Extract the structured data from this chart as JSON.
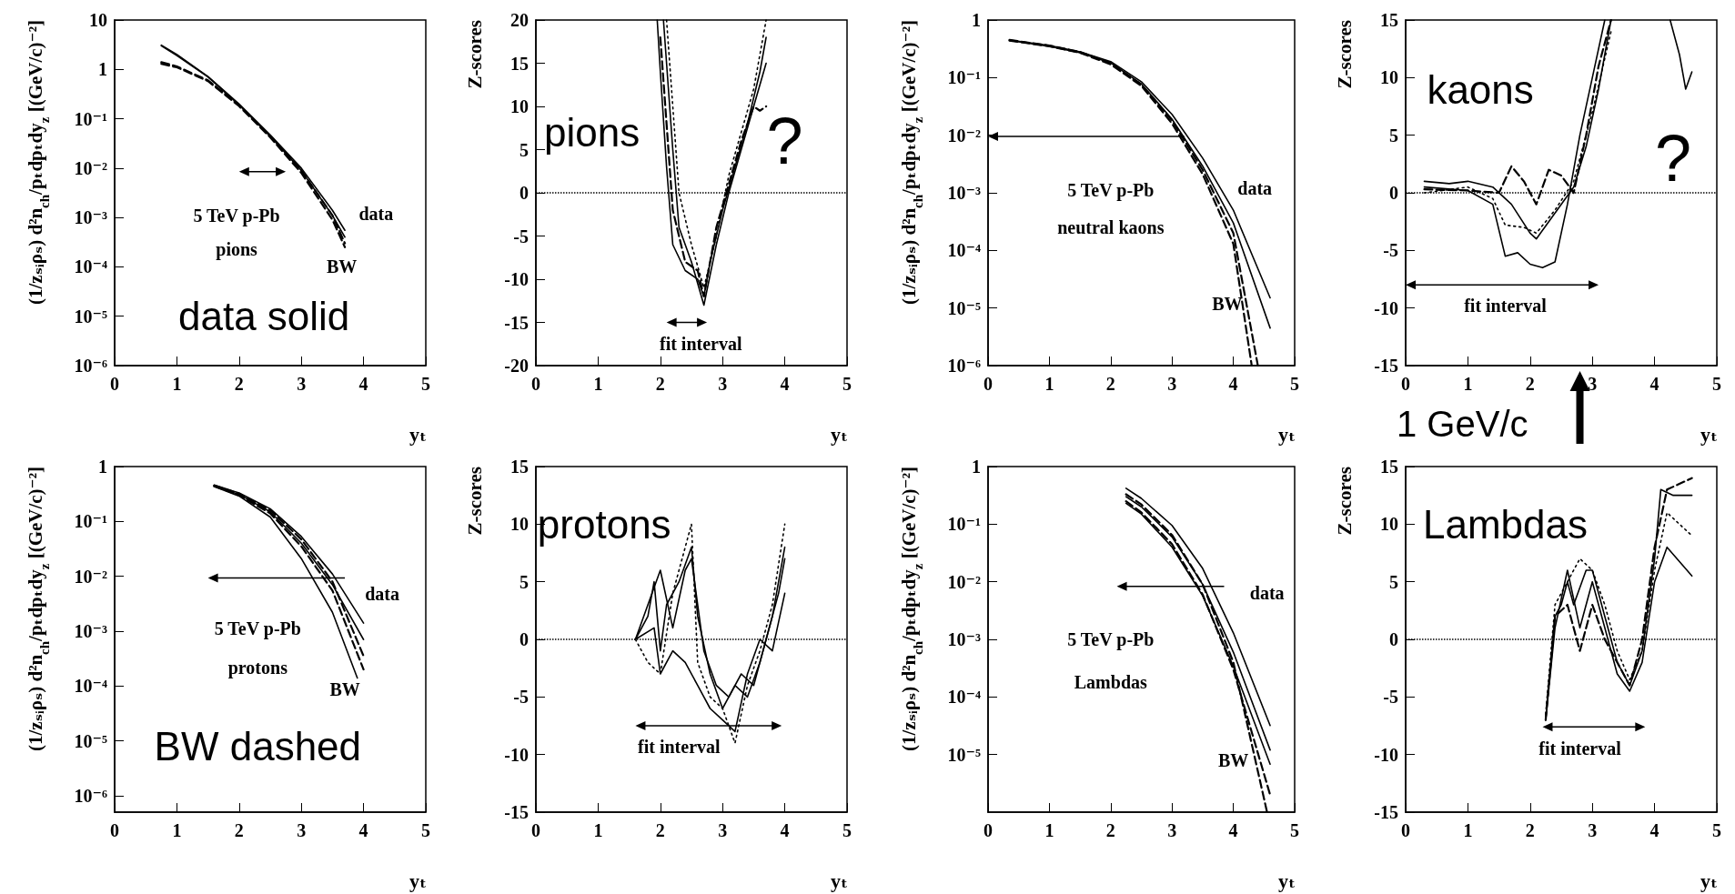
{
  "chart_data": [
    {
      "type": "line",
      "xlabel": "yₜ",
      "ylabel": "(1/zₛᵢρₛ) d²n$_{ch}$/pₜdpₜdy$_{z}$  [(GeV/c)⁻²]",
      "log": "y",
      "marker": "none",
      "xlim": [
        0,
        5
      ],
      "xticks": [
        0,
        1,
        2,
        3,
        4,
        5
      ],
      "ylim": [
        1e-06,
        10
      ],
      "yticks": [
        10,
        1,
        {
          "value": 0.1,
          "label": "10⁻¹"
        },
        {
          "value": 0.01,
          "label": "10⁻²"
        },
        {
          "value": 0.001,
          "label": "10⁻³"
        },
        {
          "value": 0.0001,
          "label": "10⁻⁴"
        },
        {
          "value": 1e-05,
          "label": "10⁻⁵"
        },
        {
          "value": 1e-06,
          "label": "10⁻⁶"
        }
      ],
      "annotations": [
        "data solid",
        "5 TeV p-Pb",
        "pions",
        "data",
        "BW"
      ],
      "series": [
        {
          "color": "#000000",
          "line_style": "solid",
          "x": [
            0.75,
            1,
            1.5,
            2,
            2.5,
            3,
            3.5,
            3.7
          ],
          "values": [
            3.1,
            2.0,
            0.72,
            0.2,
            0.047,
            0.01,
            0.0014,
            0.00055
          ]
        },
        {
          "color": "#000000",
          "line_style": "solid",
          "x": [
            0.75,
            1,
            1.5,
            2,
            2.5,
            3,
            3.5,
            3.7
          ],
          "values": [
            3.0,
            1.9,
            0.7,
            0.19,
            0.044,
            0.009,
            0.0011,
            0.0004
          ]
        },
        {
          "color": "#000000",
          "line_style": "dashed",
          "x": [
            0.75,
            1,
            1.5,
            2,
            2.5,
            3,
            3.5,
            3.7
          ],
          "values": [
            1.4,
            1.15,
            0.6,
            0.19,
            0.045,
            0.009,
            0.0011,
            0.0003
          ]
        },
        {
          "color": "#000000",
          "line_style": "dashed",
          "x": [
            0.75,
            1,
            1.5,
            2,
            2.5,
            3,
            3.5,
            3.7
          ],
          "values": [
            1.3,
            1.1,
            0.58,
            0.18,
            0.042,
            0.008,
            0.0009,
            0.00025
          ]
        }
      ]
    },
    {
      "type": "line",
      "xlabel": "yₜ",
      "ylabel": "Z-scores",
      "marker": "none",
      "xlim": [
        0,
        5
      ],
      "xticks": [
        0,
        1,
        2,
        3,
        4,
        5
      ],
      "ylim": [
        -20,
        20
      ],
      "yticks": [
        -20,
        -15,
        -10,
        -5,
        0,
        5,
        10,
        15,
        20
      ],
      "ref_lines": [
        {
          "axis": "y",
          "value": 0,
          "line_style": "dotted"
        }
      ],
      "annotations": [
        "pions",
        "?",
        "fit interval"
      ],
      "series": [
        {
          "color": "#000000",
          "line_style": "solid",
          "x": [
            1.95,
            2.0,
            2.1,
            2.2,
            2.4,
            2.6,
            2.7,
            2.8,
            3.0,
            3.2,
            3.4,
            3.6,
            3.7
          ],
          "values": [
            20,
            14,
            3,
            -6,
            -9,
            -10,
            -12,
            -8,
            -2,
            3,
            8,
            14,
            18
          ]
        },
        {
          "color": "#000000",
          "line_style": "solid",
          "x": [
            2.05,
            2.2,
            2.3,
            2.5,
            2.7,
            2.9,
            3.1,
            3.3,
            3.5,
            3.7
          ],
          "values": [
            20,
            5,
            -4,
            -8,
            -13,
            -6,
            0,
            5,
            10,
            15
          ]
        },
        {
          "color": "#000000",
          "line_style": "dotted",
          "x": [
            2.1,
            2.3,
            2.5,
            2.7,
            2.9,
            3.1,
            3.3,
            3.5,
            3.7
          ],
          "values": [
            20,
            0,
            -6,
            -11,
            -5,
            2,
            7,
            12,
            20
          ]
        },
        {
          "color": "#000000",
          "line_style": "dashed",
          "x": [
            2.0,
            2.2,
            2.4,
            2.6,
            2.7,
            2.9,
            3.1,
            3.3,
            3.5,
            3.6,
            3.7
          ],
          "values": [
            18,
            -2,
            -8,
            -9,
            -12,
            -4,
            1,
            6,
            10,
            9.5,
            10
          ]
        }
      ]
    },
    {
      "type": "line",
      "xlabel": "yₜ",
      "ylabel": "(1/zₛᵢρₛ) d²n$_{ch}$/pₜdpₜdy$_{z}$  [(GeV/c)⁻²]",
      "log": "y",
      "marker": "none",
      "xlim": [
        0,
        5
      ],
      "xticks": [
        0,
        1,
        2,
        3,
        4,
        5
      ],
      "ylim": [
        1e-06,
        1
      ],
      "yticks": [
        1,
        {
          "value": 0.1,
          "label": "10⁻¹"
        },
        {
          "value": 0.01,
          "label": "10⁻²"
        },
        {
          "value": 0.001,
          "label": "10⁻³"
        },
        {
          "value": 0.0001,
          "label": "10⁻⁴"
        },
        {
          "value": 1e-05,
          "label": "10⁻⁵"
        },
        {
          "value": 1e-06,
          "label": "10⁻⁶"
        }
      ],
      "annotations": [
        "5 TeV p-Pb",
        "neutral kaons",
        "data",
        "BW"
      ],
      "series": [
        {
          "color": "#000000",
          "line_style": "solid",
          "x": [
            0.35,
            1,
            1.5,
            2,
            2.5,
            3,
            3.5,
            4,
            4.6
          ],
          "values": [
            0.45,
            0.36,
            0.28,
            0.19,
            0.085,
            0.023,
            0.004,
            0.0005,
            1.5e-05
          ]
        },
        {
          "color": "#000000",
          "line_style": "solid",
          "x": [
            0.35,
            1,
            1.5,
            2,
            2.5,
            3,
            3.5,
            4,
            4.6
          ],
          "values": [
            0.44,
            0.35,
            0.27,
            0.18,
            0.078,
            0.019,
            0.0029,
            0.0003,
            4.5e-06
          ]
        },
        {
          "color": "#000000",
          "line_style": "dashed",
          "x": [
            0.35,
            1,
            1.5,
            2,
            2.5,
            3,
            3.5,
            4,
            4.3
          ],
          "values": [
            0.44,
            0.35,
            0.27,
            0.17,
            0.072,
            0.016,
            0.0021,
            0.00013,
            1e-06
          ]
        },
        {
          "color": "#000000",
          "line_style": "dashed",
          "x": [
            0.35,
            1,
            1.5,
            2,
            2.5,
            3,
            3.5,
            4,
            4.4
          ],
          "values": [
            0.45,
            0.36,
            0.28,
            0.18,
            0.075,
            0.018,
            0.0025,
            0.0002,
            1e-06
          ]
        }
      ]
    },
    {
      "type": "line",
      "xlabel": "yₜ",
      "ylabel": "Z-scores",
      "marker": "none",
      "xlim": [
        0,
        5
      ],
      "xticks": [
        0,
        1,
        2,
        3,
        4,
        5
      ],
      "ylim": [
        -15,
        15
      ],
      "yticks": [
        -15,
        -10,
        -5,
        0,
        5,
        10,
        15
      ],
      "ref_lines": [
        {
          "axis": "y",
          "value": 0,
          "line_style": "dotted"
        }
      ],
      "annotations": [
        "kaons",
        "?",
        "fit interval",
        "1 GeV/c"
      ],
      "series": [
        {
          "color": "#000000",
          "line_style": "solid",
          "x": [
            0.3,
            0.7,
            1,
            1.4,
            1.7,
            2.0,
            2.1,
            2.3,
            2.5,
            2.7,
            2.9,
            3.1,
            3.3
          ],
          "values": [
            1,
            0.8,
            1,
            0.5,
            -1,
            -3.5,
            -4,
            -2.5,
            -1,
            0.5,
            4,
            9,
            15
          ]
        },
        {
          "color": "#000000",
          "line_style": "solid",
          "x": [
            0.3,
            1,
            1.4,
            1.6,
            1.8,
            2.0,
            2.2,
            2.4,
            2.6,
            2.8,
            3.0,
            3.2
          ],
          "values": [
            0.5,
            0.2,
            -1,
            -5.5,
            -5.2,
            -6.2,
            -6.5,
            -6,
            -1,
            5,
            10,
            15
          ]
        },
        {
          "color": "#000000",
          "line_style": "dashed",
          "x": [
            0.3,
            1.0,
            1.5,
            1.7,
            1.9,
            2.1,
            2.3,
            2.5,
            2.7,
            2.9,
            3.1,
            3.3
          ],
          "values": [
            0.3,
            0.2,
            0,
            2.3,
            1,
            -1,
            2,
            1.5,
            0,
            5,
            11,
            15
          ]
        },
        {
          "color": "#000000",
          "line_style": "dotted",
          "x": [
            0.3,
            1.0,
            1.4,
            1.6,
            1.9,
            2.1,
            2.4,
            2.7,
            3.0,
            3.3
          ],
          "values": [
            0,
            0.5,
            -0.5,
            -2.8,
            -3,
            -3.5,
            -1.5,
            1,
            7,
            14
          ]
        },
        {
          "color": "#000000",
          "line_style": "solid",
          "x": [
            4.25,
            4.4,
            4.5,
            4.6
          ],
          "values": [
            15,
            12,
            9,
            10.5
          ]
        }
      ]
    },
    {
      "type": "line",
      "xlabel": "yₜ",
      "ylabel": "(1/zₛᵢρₛ) d²n$_{ch}$/pₜdpₜdy$_{z}$  [(GeV/c)⁻²]",
      "log": "y",
      "marker": "none",
      "xlim": [
        0,
        5
      ],
      "xticks": [
        0,
        1,
        2,
        3,
        4,
        5
      ],
      "ylim": [
        5e-07,
        1
      ],
      "yticks": [
        1,
        {
          "value": 0.1,
          "label": "10⁻¹"
        },
        {
          "value": 0.01,
          "label": "10⁻²"
        },
        {
          "value": 0.001,
          "label": "10⁻³"
        },
        {
          "value": 0.0001,
          "label": "10⁻⁴"
        },
        {
          "value": 1e-05,
          "label": "10⁻⁵"
        },
        {
          "value": 1e-06,
          "label": "10⁻⁶"
        }
      ],
      "annotations": [
        "BW dashed",
        "5 TeV p-Pb",
        "protons",
        "data",
        "BW"
      ],
      "series": [
        {
          "color": "#000000",
          "line_style": "solid",
          "x": [
            1.6,
            2,
            2.5,
            3,
            3.5,
            4
          ],
          "values": [
            0.46,
            0.33,
            0.17,
            0.053,
            0.011,
            0.0014
          ]
        },
        {
          "color": "#000000",
          "line_style": "solid",
          "x": [
            1.6,
            2,
            2.5,
            3,
            3.5,
            4
          ],
          "values": [
            0.44,
            0.31,
            0.15,
            0.04,
            0.007,
            0.0007
          ]
        },
        {
          "color": "#000000",
          "line_style": "solid",
          "x": [
            1.6,
            2,
            2.5,
            3,
            3.5,
            3.9
          ],
          "values": [
            0.43,
            0.29,
            0.12,
            0.021,
            0.0022,
            0.00014
          ]
        },
        {
          "color": "#000000",
          "line_style": "dashed",
          "x": [
            1.6,
            2,
            2.5,
            3,
            3.5,
            4
          ],
          "values": [
            0.45,
            0.32,
            0.16,
            0.047,
            0.008,
            0.00035
          ]
        },
        {
          "color": "#000000",
          "line_style": "dashed",
          "x": [
            1.6,
            2,
            2.5,
            3,
            3.5,
            4
          ],
          "values": [
            0.44,
            0.3,
            0.14,
            0.035,
            0.0055,
            0.0002
          ]
        }
      ]
    },
    {
      "type": "line",
      "xlabel": "yₜ",
      "ylabel": "Z-scores",
      "marker": "none",
      "xlim": [
        0,
        5
      ],
      "xticks": [
        0,
        1,
        2,
        3,
        4,
        5
      ],
      "ylim": [
        -15,
        15
      ],
      "yticks": [
        -15,
        -10,
        -5,
        0,
        5,
        10,
        15
      ],
      "ref_lines": [
        {
          "axis": "y",
          "value": 0,
          "line_style": "dotted"
        }
      ],
      "annotations": [
        "protons",
        "fit interval"
      ],
      "series": [
        {
          "color": "#000000",
          "line_style": "solid",
          "x": [
            1.6,
            1.8,
            1.9,
            2.0,
            2.1,
            2.3,
            2.5,
            2.6,
            2.8,
            3.0,
            3.2,
            3.4,
            3.6,
            3.8,
            4.0
          ],
          "values": [
            0,
            2,
            5,
            -1,
            3,
            5,
            8,
            2,
            -3,
            -6,
            -4,
            -5,
            -2,
            2,
            8
          ]
        },
        {
          "color": "#000000",
          "line_style": "solid",
          "x": [
            1.6,
            1.8,
            2.0,
            2.2,
            2.4,
            2.5,
            2.7,
            2.9,
            3.1,
            3.3,
            3.5,
            3.7,
            3.9,
            4.0
          ],
          "values": [
            0,
            3,
            6,
            1,
            6,
            7,
            -1,
            -4,
            -5,
            -3,
            -4,
            0,
            4,
            7
          ]
        },
        {
          "color": "#000000",
          "line_style": "dotted",
          "x": [
            1.6,
            1.8,
            2.0,
            2.2,
            2.5,
            2.6,
            2.8,
            3.0,
            3.2,
            3.4,
            3.6,
            3.8,
            4.0
          ],
          "values": [
            0,
            -2,
            -3,
            4,
            10,
            -2,
            -5,
            -6,
            -9,
            -4,
            -1,
            3,
            10
          ]
        },
        {
          "color": "#000000",
          "line_style": "solid",
          "x": [
            1.6,
            1.9,
            2.0,
            2.2,
            2.4,
            2.6,
            2.8,
            3.0,
            3.2,
            3.4,
            3.6,
            3.8,
            4.0
          ],
          "values": [
            0,
            1,
            -3,
            -1,
            -2,
            -4,
            -6,
            -7,
            -8,
            -3,
            0,
            -1,
            4
          ]
        }
      ]
    },
    {
      "type": "line",
      "xlabel": "yₜ",
      "ylabel": "(1/zₛᵢρₛ) d²n$_{ch}$/pₜdpₜdy$_{z}$  [(GeV/c)⁻²]",
      "log": "y",
      "marker": "none",
      "xlim": [
        0,
        5
      ],
      "xticks": [
        0,
        1,
        2,
        3,
        4,
        5
      ],
      "ylim": [
        1e-06,
        1
      ],
      "yticks": [
        1,
        {
          "value": 0.1,
          "label": "10⁻¹"
        },
        {
          "value": 0.01,
          "label": "10⁻²"
        },
        {
          "value": 0.001,
          "label": "10⁻³"
        },
        {
          "value": 0.0001,
          "label": "10⁻⁴"
        },
        {
          "value": 1e-05,
          "label": "10⁻⁵"
        }
      ],
      "annotations": [
        "5 TeV p-Pb",
        "Lambdas",
        "data",
        "BW"
      ],
      "series": [
        {
          "color": "#000000",
          "line_style": "solid",
          "x": [
            2.25,
            2.5,
            3,
            3.5,
            4,
            4.6
          ],
          "values": [
            0.42,
            0.28,
            0.095,
            0.017,
            0.0013,
            3.2e-05
          ]
        },
        {
          "color": "#000000",
          "line_style": "solid",
          "x": [
            2.25,
            2.5,
            3,
            3.5,
            4,
            4.6
          ],
          "values": [
            0.3,
            0.2,
            0.06,
            0.009,
            0.0006,
            1.2e-05
          ]
        },
        {
          "color": "#000000",
          "line_style": "solid",
          "x": [
            2.25,
            2.5,
            3,
            3.5,
            4,
            4.6
          ],
          "values": [
            0.23,
            0.15,
            0.04,
            0.0057,
            0.00034,
            6.8e-06
          ]
        },
        {
          "color": "#000000",
          "line_style": "dashed",
          "x": [
            2.25,
            2.5,
            3,
            3.5,
            4,
            4.55
          ],
          "values": [
            0.33,
            0.22,
            0.065,
            0.009,
            0.0004,
            1e-06
          ]
        },
        {
          "color": "#000000",
          "line_style": "dashed",
          "x": [
            2.25,
            2.5,
            3,
            3.5,
            4,
            4.6
          ],
          "values": [
            0.25,
            0.16,
            0.045,
            0.006,
            0.0003,
            2e-06
          ]
        }
      ]
    },
    {
      "type": "line",
      "xlabel": "yₜ",
      "ylabel": "Z-scores",
      "marker": "none",
      "xlim": [
        0,
        5
      ],
      "xticks": [
        0,
        1,
        2,
        3,
        4,
        5
      ],
      "ylim": [
        -15,
        15
      ],
      "yticks": [
        -15,
        -10,
        -5,
        0,
        5,
        10,
        15
      ],
      "ref_lines": [
        {
          "axis": "y",
          "value": 0,
          "line_style": "dotted"
        }
      ],
      "annotations": [
        "Lambdas",
        "fit interval"
      ],
      "series": [
        {
          "color": "#000000",
          "line_style": "solid",
          "x": [
            2.25,
            2.4,
            2.5,
            2.6,
            2.7,
            2.9,
            3.0,
            3.2,
            3.4,
            3.6,
            3.8,
            4.0,
            4.1,
            4.3,
            4.6
          ],
          "values": [
            -7,
            2,
            3,
            5,
            3,
            6,
            6,
            2,
            -2,
            -4,
            -1,
            7,
            13,
            12.5,
            12.5
          ]
        },
        {
          "color": "#000000",
          "line_style": "solid",
          "x": [
            2.25,
            2.4,
            2.6,
            2.8,
            3.0,
            3.2,
            3.4,
            3.6,
            3.8,
            4.0,
            4.2,
            4.6
          ],
          "values": [
            -7,
            1,
            6,
            1,
            5,
            1,
            -3,
            -4.5,
            -2,
            5,
            8,
            5.5
          ]
        },
        {
          "color": "#000000",
          "line_style": "dashed",
          "x": [
            2.25,
            2.4,
            2.6,
            2.8,
            3.0,
            3.2,
            3.4,
            3.6,
            3.8,
            4.0,
            4.2,
            4.6
          ],
          "values": [
            -7,
            2,
            3,
            -1,
            3,
            0,
            -2,
            -4,
            0,
            8,
            13,
            14
          ]
        },
        {
          "color": "#000000",
          "line_style": "dotted",
          "x": [
            2.25,
            2.4,
            2.6,
            2.8,
            3.0,
            3.2,
            3.4,
            3.6,
            3.8,
            4.0,
            4.2,
            4.6
          ],
          "values": [
            -6.5,
            3,
            5,
            7,
            6,
            3,
            -1,
            -3.5,
            -1,
            6,
            11,
            9
          ]
        }
      ]
    }
  ]
}
